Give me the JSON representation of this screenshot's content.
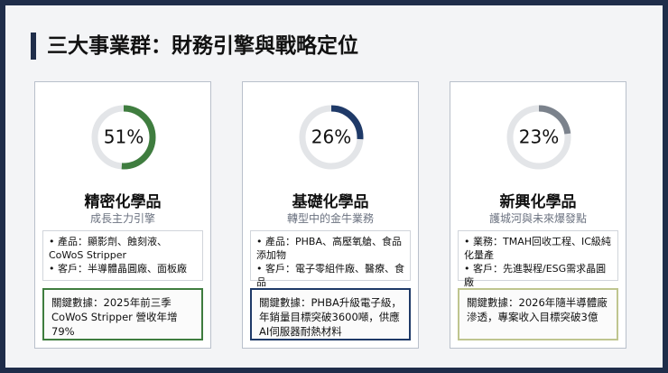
{
  "title": "三大事業群：財務引擎與戰略定位",
  "cards": [
    {
      "value": 51,
      "value_label": "51%",
      "color": "#3f7d3f",
      "name": "精密化學品",
      "subtitle": "成長主力引擎",
      "bullets": [
        "產品：顯影劑、蝕刻液、CoWoS Stripper",
        "客戶：半導體晶圓廠、面板廠"
      ],
      "key": "關鍵數據：2025年前三季 CoWoS Stripper 營收年增 79%",
      "key_border": "#3f7d3f"
    },
    {
      "value": 26,
      "value_label": "26%",
      "color": "#1f3a68",
      "name": "基礎化學品",
      "subtitle": "轉型中的金牛業務",
      "bullets": [
        "產品：PHBA、高壓氧艙、食品添加物",
        "客戶：電子零組件廠、醫療、食品"
      ],
      "key": "關鍵數據：PHBA升級電子級，年銷量目標突破3600噸，供應AI伺服器耐熱材料",
      "key_border": "#1f3a68"
    },
    {
      "value": 23,
      "value_label": "23%",
      "color": "#7b828c",
      "name": "新興化學品",
      "subtitle": "護城河與未來爆發點",
      "bullets": [
        "業務：TMAH回收工程、IC級純化量產",
        "客戶：先進製程/ESG需求晶圓廠"
      ],
      "key": "關鍵數據：2026年隨半導體廠滲透，專案收入目標突破3億",
      "key_border": "#bfc58f"
    }
  ]
}
